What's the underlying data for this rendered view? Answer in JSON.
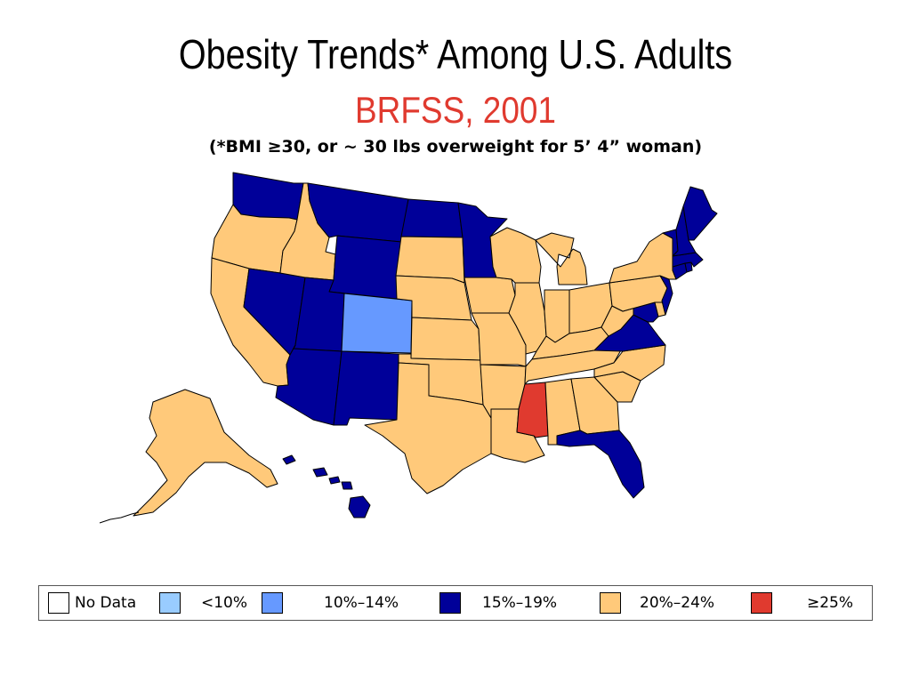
{
  "header": {
    "title": "Obesity Trends* Among U.S. Adults",
    "subtitle": "BRFSS, 2001",
    "note": "(*BMI ≥30, or ~ 30 lbs overweight for 5’ 4” woman)"
  },
  "colors": {
    "no_data": "#FFFFFF",
    "lt10": "#99CCFF",
    "c10_14": "#6699FF",
    "c15_19": "#000099",
    "c20_24": "#FFC97A",
    "ge25": "#E03A2F",
    "border": "#000000"
  },
  "legend": [
    {
      "key": "no_data",
      "label": "No Data"
    },
    {
      "key": "lt10",
      "label": "<10%"
    },
    {
      "key": "c10_14",
      "label": "10%–14%"
    },
    {
      "key": "c15_19",
      "label": "15%–19%"
    },
    {
      "key": "c20_24",
      "label": "20%–24%"
    },
    {
      "key": "ge25",
      "label": "≥25%"
    }
  ],
  "states": {
    "WA": "c15_19",
    "OR": "c20_24",
    "CA": "c20_24",
    "NV": "c15_19",
    "ID": "c20_24",
    "MT": "c15_19",
    "WY": "c15_19",
    "UT": "c15_19",
    "AZ": "c15_19",
    "CO": "c10_14",
    "NM": "c15_19",
    "ND": "c15_19",
    "SD": "c20_24",
    "NE": "c20_24",
    "KS": "c20_24",
    "OK": "c20_24",
    "TX": "c20_24",
    "MN": "c15_19",
    "IA": "c20_24",
    "MO": "c20_24",
    "AR": "c20_24",
    "LA": "c20_24",
    "WI": "c20_24",
    "IL": "c20_24",
    "MI": "c20_24",
    "IN": "c20_24",
    "OH": "c20_24",
    "KY": "c20_24",
    "TN": "c20_24",
    "MS": "ge25",
    "AL": "c20_24",
    "GA": "c20_24",
    "FL": "c15_19",
    "SC": "c20_24",
    "NC": "c20_24",
    "VA": "c15_19",
    "WV": "c20_24",
    "MD": "c15_19",
    "DE": "c20_24",
    "PA": "c20_24",
    "NJ": "c15_19",
    "NY": "c20_24",
    "CT": "c15_19",
    "RI": "c15_19",
    "MA": "c15_19",
    "VT": "c15_19",
    "NH": "c15_19",
    "ME": "c15_19",
    "AK": "c20_24",
    "HI": "c15_19"
  }
}
